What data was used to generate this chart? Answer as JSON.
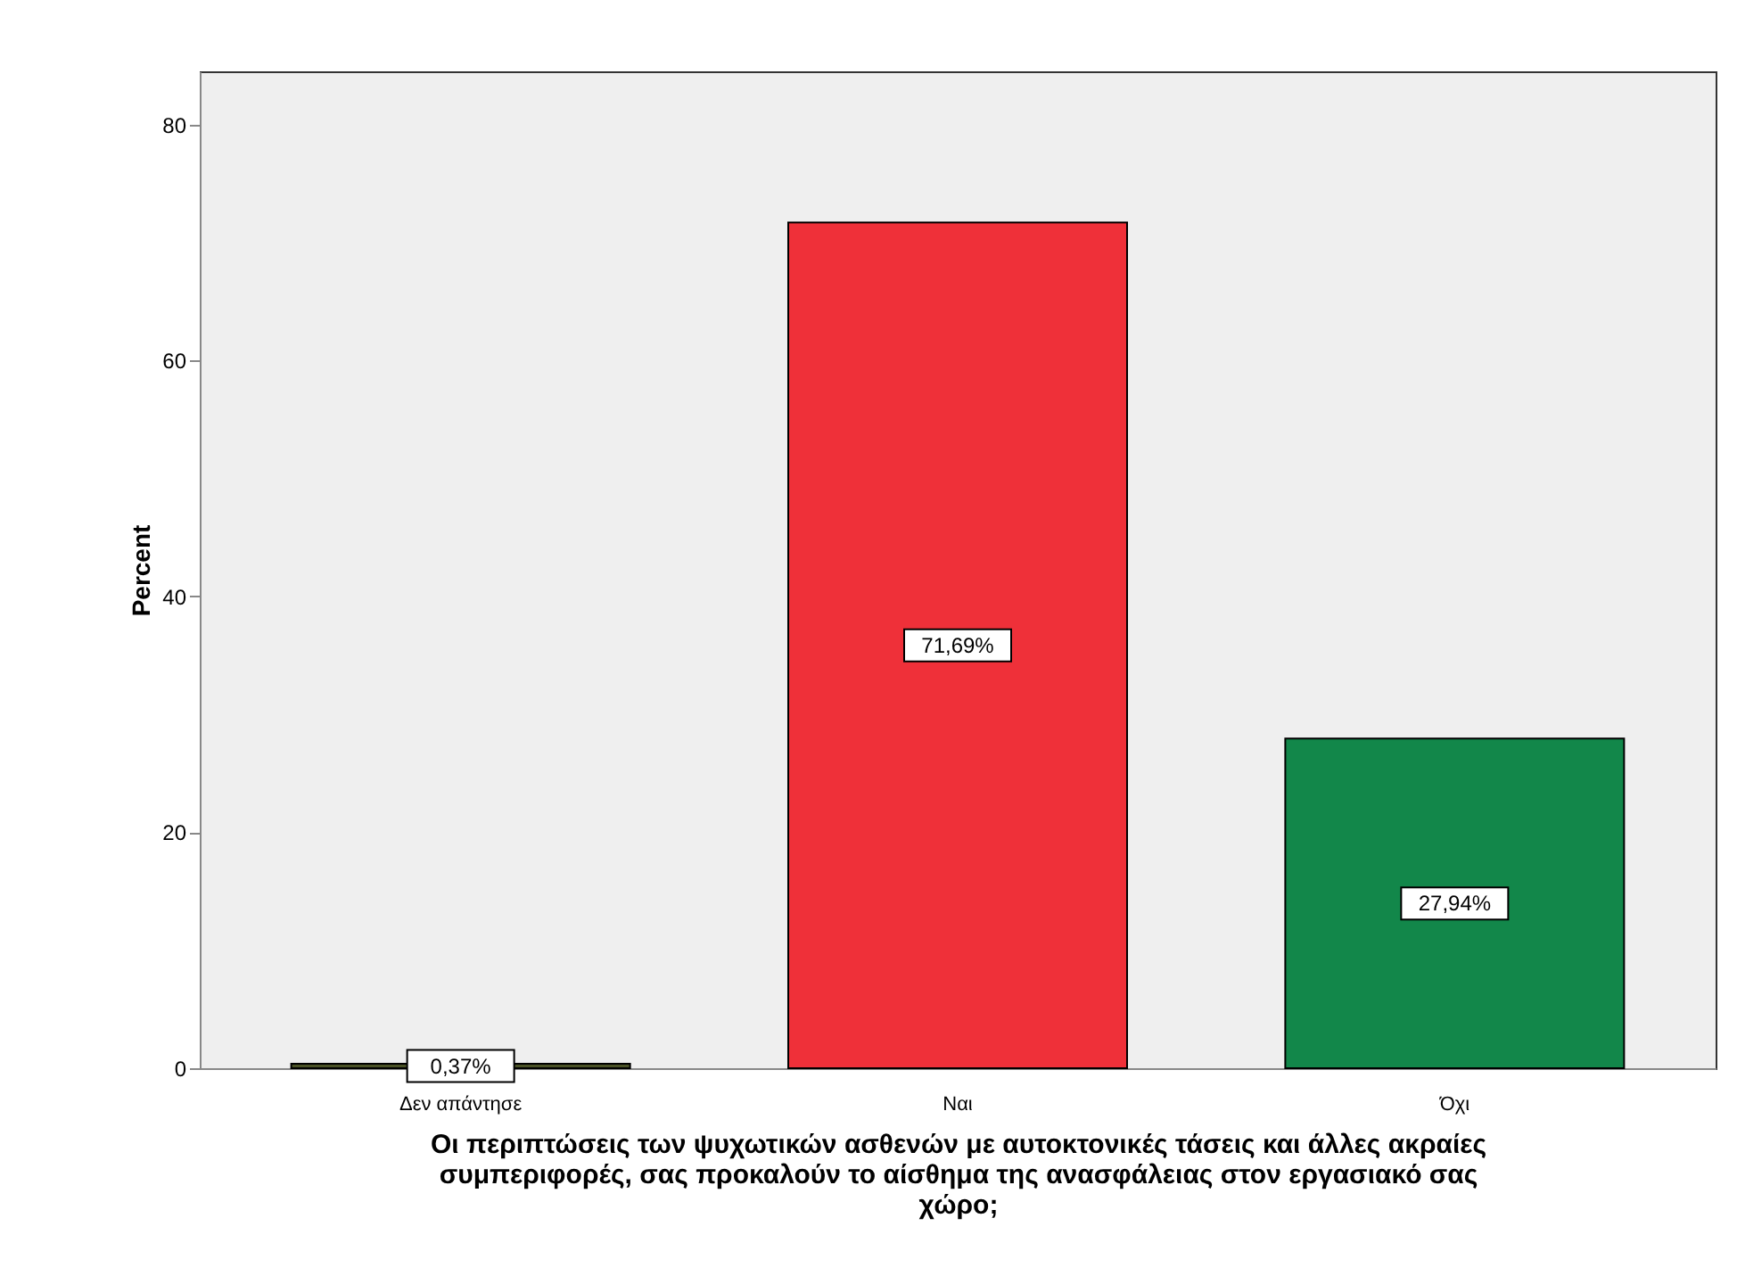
{
  "chart_data": {
    "type": "bar",
    "xlabel": "Οι περιπτώσεις των ψυχωτικών ασθενών με αυτοκτονικές τάσεις και άλλες ακραίες συμπεριφορές, σας προκαλούν το αίσθημα της ανασφάλειας στον εργασιακό σας χώρο;",
    "ylabel": "Percent",
    "categories": [
      "Δεν απάντησε",
      "Ναι",
      "Όχι"
    ],
    "values": [
      0.37,
      71.69,
      27.94
    ],
    "colors": [
      "#4a5226",
      "#ef3039",
      "#12874a"
    ],
    "value_labels": [
      "0,37%",
      "71,69%",
      "27,94%"
    ],
    "ylim": [
      0,
      84.5
    ],
    "yticks": [
      0,
      20,
      40,
      60,
      80
    ],
    "grid": false,
    "legend": false
  }
}
